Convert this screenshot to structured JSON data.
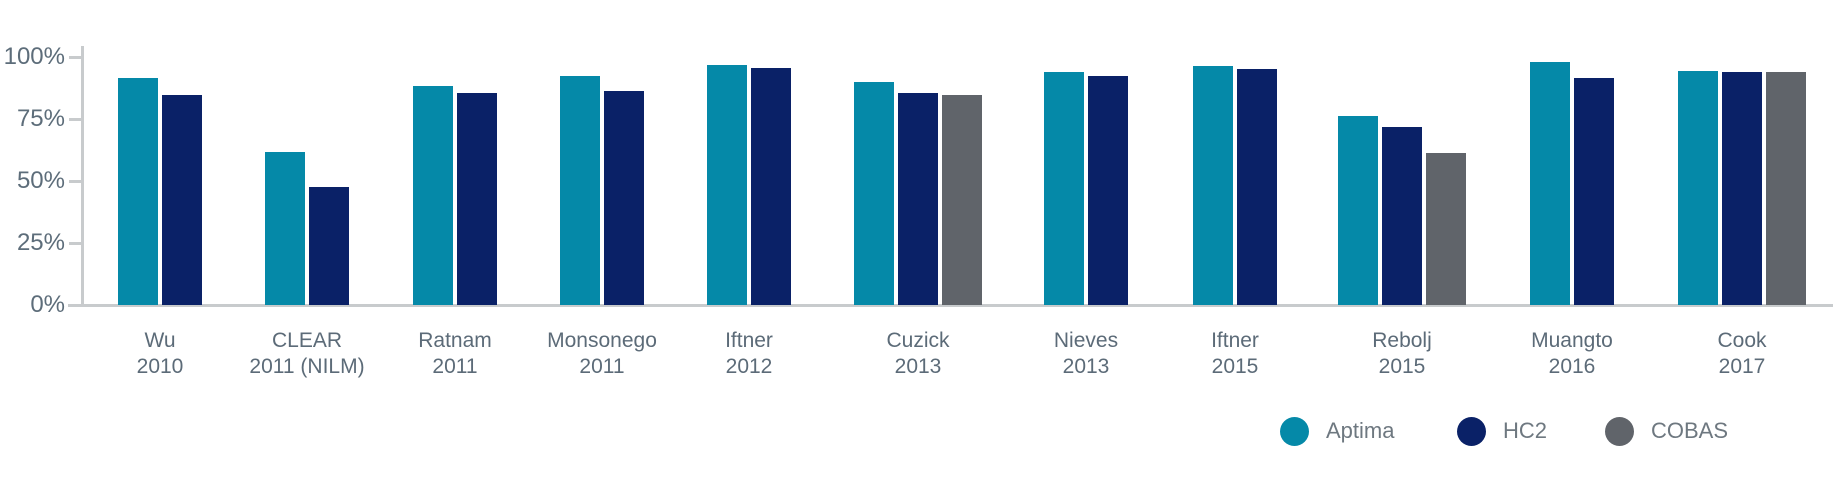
{
  "chart_data": {
    "type": "bar",
    "title": "",
    "xlabel": "",
    "ylabel": "",
    "ylim": [
      0,
      100
    ],
    "grid": false,
    "legend_position": "bottom-right",
    "y_ticks": [
      {
        "value": 100,
        "label": "100%"
      },
      {
        "value": 75,
        "label": "75%"
      },
      {
        "value": 50,
        "label": "50%"
      },
      {
        "value": 25,
        "label": "25%"
      },
      {
        "value": 0,
        "label": "0%"
      }
    ],
    "categories": [
      {
        "name": "Wu",
        "year": "2010"
      },
      {
        "name": "CLEAR",
        "year": "2011 (NILM)"
      },
      {
        "name": "Ratnam",
        "year": "2011"
      },
      {
        "name": "Monsonego",
        "year": "2011"
      },
      {
        "name": "Iftner",
        "year": "2012"
      },
      {
        "name": "Cuzick",
        "year": "2013"
      },
      {
        "name": "Nieves",
        "year": "2013"
      },
      {
        "name": "Iftner",
        "year": "2015"
      },
      {
        "name": "Rebolj",
        "year": "2015"
      },
      {
        "name": "Muangto",
        "year": "2016"
      },
      {
        "name": "Cook",
        "year": "2017"
      }
    ],
    "series": [
      {
        "name": "Aptima",
        "color": "#0589a8",
        "values": [
          91.5,
          61.8,
          88.5,
          92.2,
          96.6,
          90.1,
          93.9,
          96.5,
          76.4,
          98.0,
          94.4
        ]
      },
      {
        "name": "HC2",
        "color": "#0a2167",
        "values": [
          84.7,
          47.7,
          85.4,
          86.4,
          95.5,
          85.4,
          92.4,
          95.1,
          71.7,
          91.5,
          93.9
        ]
      },
      {
        "name": "COBAS",
        "color": "#60646a",
        "values": [
          null,
          null,
          null,
          null,
          null,
          84.5,
          null,
          null,
          61.2,
          null,
          93.8
        ]
      }
    ]
  },
  "legend": {
    "items": [
      {
        "label": "Aptima",
        "color": "#0589a8"
      },
      {
        "label": "HC2",
        "color": "#0a2167"
      },
      {
        "label": "COBAS",
        "color": "#60646a"
      }
    ]
  }
}
